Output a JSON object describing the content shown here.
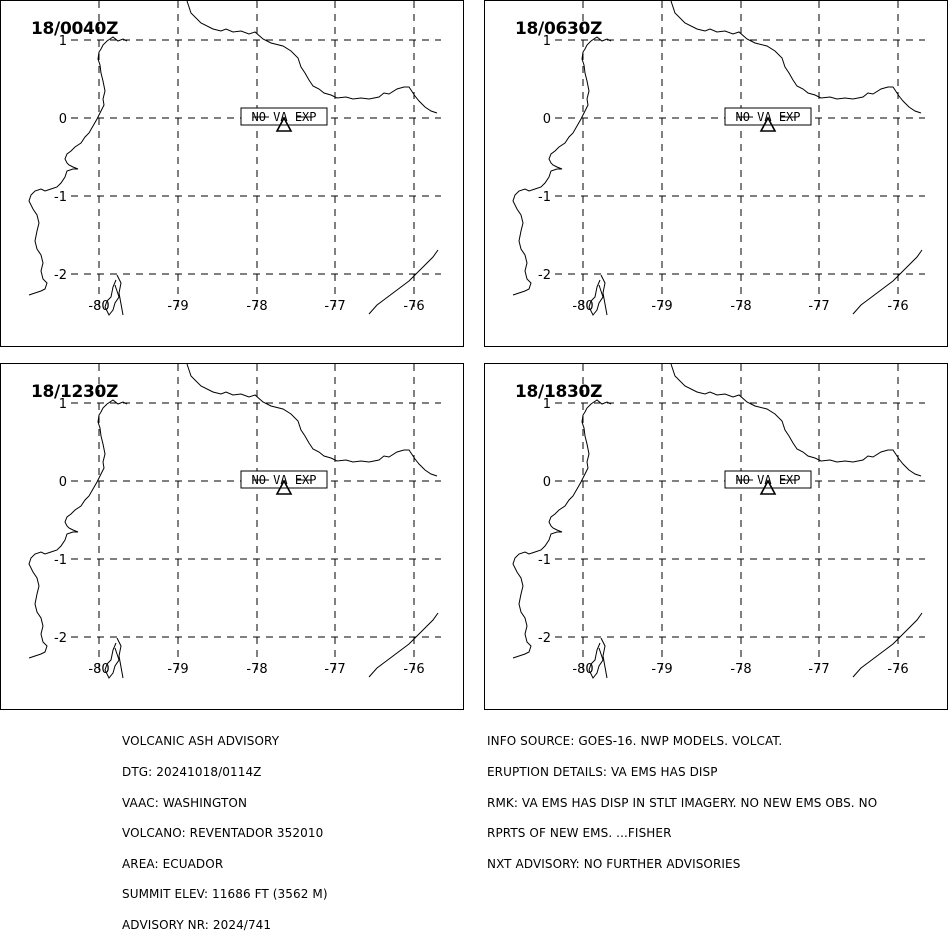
{
  "panels": [
    {
      "title": "18/0040Z",
      "status": "NO VA EXP"
    },
    {
      "title": "18/0630Z",
      "status": "NO VA EXP"
    },
    {
      "title": "18/1230Z",
      "status": "NO VA EXP"
    },
    {
      "title": "18/1830Z",
      "status": "NO VA EXP"
    }
  ],
  "map": {
    "lon_labels": [
      "-80",
      "-79",
      "-78",
      "-77",
      "-76"
    ],
    "lat_labels": [
      "1",
      "0",
      "-1",
      "-2"
    ],
    "volcano_marker": "triangle-icon"
  },
  "advisory_left": [
    "VOLCANIC ASH ADVISORY",
    "DTG: 20241018/0114Z",
    "VAAC: WASHINGTON",
    "VOLCANO: REVENTADOR 352010",
    "AREA: ECUADOR",
    "SUMMIT ELEV: 11686 FT (3562 M)",
    "ADVISORY NR: 2024/741"
  ],
  "advisory_right": [
    "INFO SOURCE: GOES-16. NWP MODELS. VOLCAT.",
    "ERUPTION DETAILS: VA EMS HAS DISP",
    "RMK: VA EMS HAS DISP IN STLT IMAGERY. NO NEW EMS OBS. NO",
    "RPRTS OF NEW EMS. ...FISHER",
    "NXT ADVISORY: NO FURTHER ADVISORIES"
  ]
}
